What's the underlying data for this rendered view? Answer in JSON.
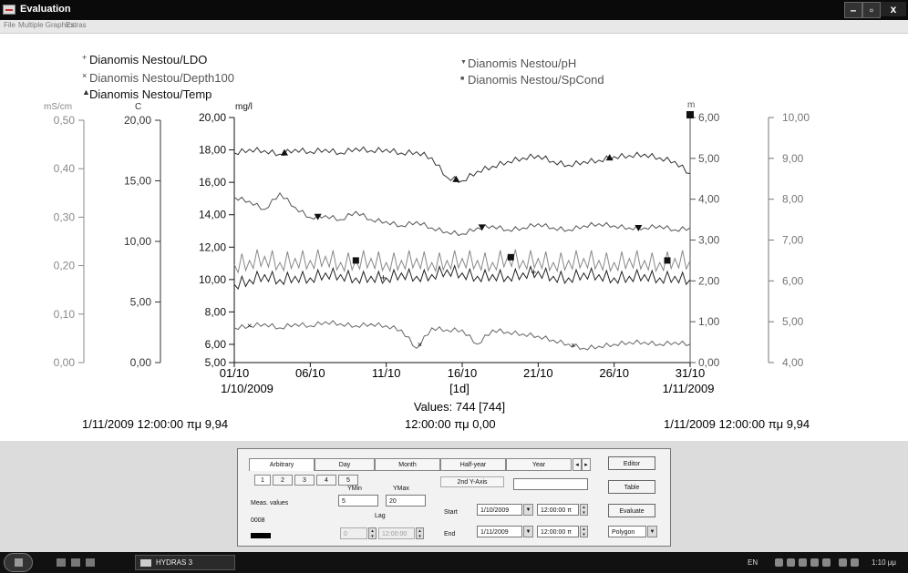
{
  "window": {
    "title": "Evaluation",
    "min_label": "–",
    "max_label": "▫",
    "close_label": "x"
  },
  "menu": {
    "items": [
      "File",
      "Multiple Graphics",
      "Extras"
    ]
  },
  "legend": {
    "left": [
      "Dianomis Nestou/LDO",
      "Dianomis Nestou/Depth100",
      "Dianomis Nestou/Temp"
    ],
    "right": [
      "Dianomis Nestou/pH",
      "Dianomis Nestou/SpCond"
    ]
  },
  "chart_data": {
    "type": "line",
    "x_ticks": [
      "01/10",
      "06/10",
      "11/10",
      "16/10",
      "21/10",
      "26/10",
      "31/10"
    ],
    "x_tick_days": [
      1,
      6,
      11,
      16,
      21,
      26,
      31
    ],
    "x_range": [
      1,
      31
    ],
    "x_start_date": "1/10/2009",
    "x_end_date": "1/11/2009",
    "x_center_label": "[1d]",
    "values_label": "Values: 744 [744]",
    "cursor_left": "1/11/2009 12:00:00 πμ  9,94",
    "cursor_center": "12:00:00 πμ  0,00",
    "cursor_right": "1/11/2009 12:00:00 πμ  9,94",
    "axes": [
      {
        "unit": "mS/cm",
        "ticks": [
          "0,50",
          "0,40",
          "0,30",
          "0,20",
          "0,10",
          "0,00"
        ],
        "range": [
          0,
          0.5
        ]
      },
      {
        "unit": "C",
        "ticks": [
          "20,00",
          "15,00",
          "10,00",
          "5,00",
          "0,00"
        ],
        "range": [
          0,
          20
        ]
      },
      {
        "unit": "mg/l",
        "ticks": [
          "20,00",
          "18,00",
          "16,00",
          "14,00",
          "12,00",
          "10,00",
          "8,00",
          "6,00",
          "5,00"
        ],
        "range": [
          5,
          20
        ]
      },
      {
        "unit": "m",
        "ticks": [
          "6,00",
          "5,00",
          "4,00",
          "3,00",
          "2,00",
          "1,00",
          "0,00"
        ],
        "range": [
          0,
          6
        ]
      },
      {
        "unit": "",
        "ticks": [
          "10,00",
          "9,00",
          "8,00",
          "7,00",
          "6,00",
          "5,00",
          "4,00"
        ],
        "range": [
          4,
          10
        ]
      }
    ],
    "series": [
      {
        "name": "Dianomis Nestou/Temp",
        "axis": "C",
        "marker": "triangle",
        "color": "#333333",
        "x": [
          1,
          2,
          3,
          4,
          5,
          6,
          7,
          8,
          9,
          10,
          11,
          12,
          13,
          14,
          15,
          16,
          17,
          18,
          19,
          20,
          21,
          22,
          23,
          24,
          25,
          26,
          27,
          28,
          29,
          30,
          31
        ],
        "y": [
          17.3,
          17.6,
          17.5,
          17.2,
          17.6,
          17.4,
          17.6,
          17.3,
          17.7,
          17.5,
          17.6,
          17.3,
          17.4,
          16.9,
          15.3,
          15.0,
          15.8,
          16.2,
          16.6,
          16.9,
          17.1,
          16.6,
          16.3,
          16.6,
          16.7,
          17.0,
          17.1,
          17.2,
          16.9,
          16.6,
          15.6
        ],
        "marker_x": [
          4.3,
          15.6,
          25.7
        ]
      },
      {
        "name": "Dianomis Nestou/pH",
        "axis": "m",
        "marker": "triangle-down",
        "color": "#555555",
        "x": [
          1,
          2,
          3,
          4,
          5,
          6,
          7,
          8,
          9,
          10,
          11,
          12,
          13,
          14,
          15,
          16,
          17,
          18,
          19,
          20,
          21,
          22,
          23,
          24,
          25,
          26,
          27,
          28,
          29,
          30,
          31
        ],
        "y": [
          4.05,
          3.95,
          3.75,
          4.15,
          3.8,
          3.55,
          3.6,
          3.5,
          3.7,
          3.5,
          3.45,
          3.35,
          3.45,
          3.3,
          3.2,
          3.15,
          3.3,
          3.35,
          3.25,
          3.3,
          3.4,
          3.3,
          3.25,
          3.35,
          3.4,
          3.35,
          3.3,
          3.3,
          3.35,
          3.25,
          3.3
        ],
        "marker_x": [
          6.5,
          17.3,
          27.6
        ]
      },
      {
        "name": "Dianomis Nestou/SpCond",
        "axis": "m",
        "marker": "square",
        "color": "#888888",
        "x": [
          1,
          2,
          3,
          4,
          5,
          6,
          7,
          8,
          9,
          10,
          11,
          12,
          13,
          14,
          15,
          16,
          17,
          18,
          19,
          20,
          21,
          22,
          23,
          24,
          25,
          26,
          27,
          28,
          29,
          30,
          31
        ],
        "y": [
          2.4,
          2.5,
          2.6,
          2.45,
          2.55,
          2.5,
          2.6,
          2.45,
          2.5,
          2.55,
          2.45,
          2.5,
          2.55,
          2.45,
          2.5,
          2.55,
          2.5,
          2.45,
          2.6,
          2.5,
          2.55,
          2.45,
          2.5,
          2.55,
          2.5,
          2.45,
          2.55,
          2.5,
          2.45,
          2.55,
          2.5
        ],
        "marker_x": [
          9.0,
          19.2,
          29.5
        ]
      },
      {
        "name": "Dianomis Nestou/LDO",
        "axis": "mg/l",
        "marker": "plus",
        "color": "#222222",
        "x": [
          1,
          2,
          3,
          4,
          5,
          6,
          7,
          8,
          9,
          10,
          11,
          12,
          13,
          14,
          15,
          16,
          17,
          18,
          19,
          20,
          21,
          22,
          23,
          24,
          25,
          26,
          27,
          28,
          29,
          30,
          31
        ],
        "y": [
          9.7,
          10.0,
          10.3,
          10.0,
          10.2,
          10.1,
          10.4,
          10.3,
          10.1,
          10.2,
          10.1,
          10.4,
          10.2,
          10.3,
          10.6,
          10.4,
          10.2,
          10.3,
          10.2,
          10.4,
          10.5,
          10.2,
          10.1,
          10.4,
          10.3,
          10.1,
          10.2,
          10.3,
          10.1,
          10.2,
          10.0
        ],
        "marker_x": [
          10.8,
          20.7
        ]
      },
      {
        "name": "Dianomis Nestou/Depth100",
        "axis": "m",
        "marker": "x",
        "color": "#666666",
        "x": [
          1,
          2,
          3,
          4,
          5,
          6,
          7,
          8,
          9,
          10,
          11,
          12,
          13,
          14,
          15,
          16,
          17,
          18,
          19,
          20,
          21,
          22,
          23,
          24,
          25,
          26,
          27,
          28,
          29,
          30,
          31
        ],
        "y": [
          0.85,
          0.9,
          0.95,
          0.85,
          0.95,
          0.9,
          1.0,
          0.95,
          0.9,
          0.95,
          0.9,
          0.8,
          0.35,
          0.85,
          0.8,
          0.8,
          0.45,
          0.8,
          0.75,
          0.7,
          0.65,
          0.55,
          0.45,
          0.35,
          0.4,
          0.45,
          0.5,
          0.5,
          0.45,
          0.5,
          0.45
        ],
        "marker_x": [
          2.0,
          13.2,
          23.3
        ]
      }
    ]
  },
  "panel": {
    "tabs": [
      "Arbitrary",
      "Day",
      "Month",
      "Half-year",
      "Year"
    ],
    "subtabs": [
      "1",
      "2",
      "3",
      "4",
      "5"
    ],
    "ymin_label": "YMin",
    "ymax_label": "YMax",
    "meas_label": "Meas. values",
    "ymin_value": "5",
    "ymax_value": "20",
    "lag_label": "Lag",
    "code": "0008",
    "lag_value": "0",
    "lag_time": "12:00:00",
    "second_axis_label": "2nd Y-Axis",
    "second_axis_value": "",
    "start_label": "Start",
    "start_date": "1/10/2009",
    "start_time": "12:00:00 π",
    "end_label": "End",
    "end_date": "1/11/2009",
    "end_time": "12:00:00 π",
    "editor_label": "Editor",
    "table_label": "Table",
    "evaluate_label": "Evaluate",
    "mode_value": "Polygon",
    "nav_left": "◂",
    "nav_right": "▸"
  },
  "taskbar": {
    "task_label": "HYDRAS 3",
    "lang": "EN",
    "time": "1:10 μμ"
  }
}
